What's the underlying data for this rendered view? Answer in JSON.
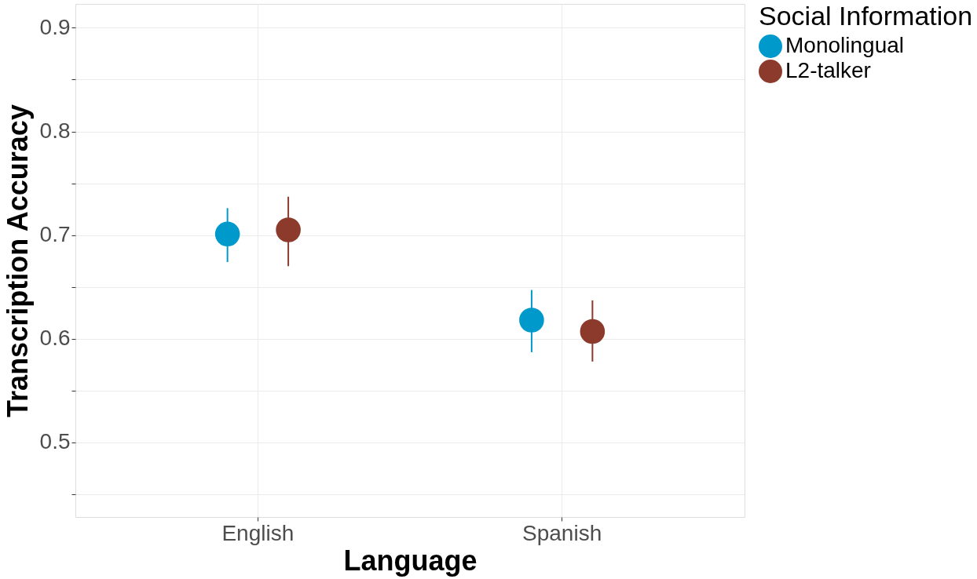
{
  "chart_data": {
    "type": "scatter",
    "xlabel": "Language",
    "ylabel": "Transcription Accuracy",
    "legend_title": "Social Information",
    "categories": [
      "English",
      "Spanish"
    ],
    "series": [
      {
        "name": "Monolingual",
        "color": "#0099cc",
        "values": [
          0.701,
          0.618
        ],
        "errors": [
          [
            0.674,
            0.726
          ],
          [
            0.587,
            0.647
          ]
        ]
      },
      {
        "name": "L2-talker",
        "color": "#8b3a2b",
        "values": [
          0.705,
          0.607
        ],
        "errors": [
          [
            0.67,
            0.737
          ],
          [
            0.578,
            0.637
          ]
        ]
      }
    ],
    "ylim": [
      0.428,
      0.923
    ],
    "yticks": [
      {
        "value": 0.45,
        "label": null
      },
      0.5,
      {
        "value": 0.55,
        "label": null
      },
      0.6,
      {
        "value": 0.65,
        "label": null
      },
      0.7,
      {
        "value": 0.75,
        "label": null
      },
      0.8,
      {
        "value": 0.85,
        "label": null
      },
      0.9
    ],
    "grid": true,
    "legend": "right",
    "marker": "circle"
  }
}
